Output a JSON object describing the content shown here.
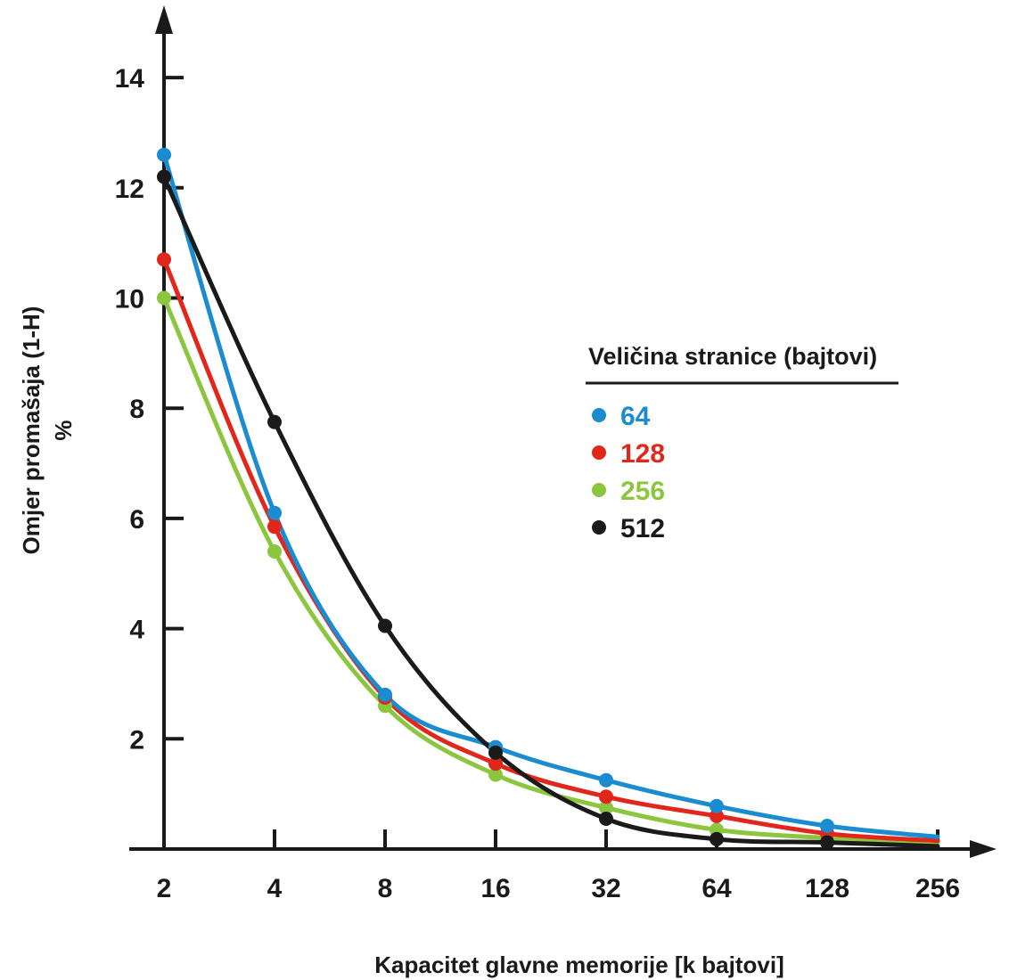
{
  "chart_data": {
    "type": "line",
    "xlabel": "Kapacitet glavne memorije [k bajtovi]",
    "ylabel": "Omjer promašaja (1-H)",
    "ylabel_unit": "%",
    "categories": [
      "2",
      "4",
      "8",
      "16",
      "32",
      "64",
      "128",
      "256"
    ],
    "ylim": [
      0,
      15
    ],
    "y_ticks": [
      "2",
      "4",
      "6",
      "8",
      "10",
      "12",
      "14"
    ],
    "grid": false,
    "legend": {
      "title": "Veličina stranice (bajtovi)",
      "position": "right"
    },
    "series": [
      {
        "name": "64",
        "color": "#1a8ccf",
        "values": [
          12.6,
          6.1,
          2.8,
          1.85,
          1.25,
          0.78,
          0.42,
          null
        ]
      },
      {
        "name": "128",
        "color": "#e1261c",
        "values": [
          10.7,
          5.85,
          2.75,
          1.55,
          0.95,
          0.6,
          0.28,
          null
        ]
      },
      {
        "name": "256",
        "color": "#8cc63f",
        "values": [
          10.0,
          5.4,
          2.6,
          1.35,
          0.75,
          0.35,
          0.2,
          null
        ]
      },
      {
        "name": "512",
        "color": "#1a1a1a",
        "values": [
          12.2,
          7.75,
          4.05,
          1.75,
          0.55,
          0.18,
          0.12,
          null
        ]
      }
    ],
    "tail_values": [
      0.22,
      0.15,
      0.1,
      0.05
    ]
  }
}
